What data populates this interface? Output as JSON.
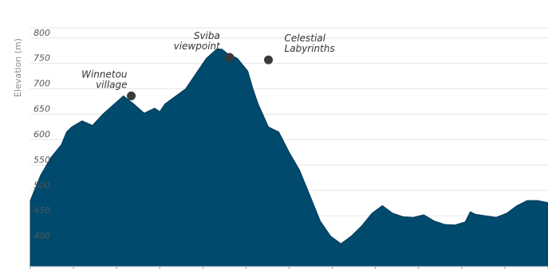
{
  "chart_data": {
    "type": "area",
    "title": "",
    "xlabel": "",
    "ylabel": "Elevation (m)",
    "ylim": [
      350,
      820
    ],
    "y_ticks": [
      400,
      450,
      500,
      550,
      600,
      650,
      700,
      750,
      800
    ],
    "grid": true,
    "colors": {
      "area": "#004a6d",
      "area_stroke": "#003a58",
      "marker": "#3a3a3a"
    },
    "x": [
      0,
      2,
      4,
      6,
      7,
      8,
      10,
      12,
      14,
      16,
      18,
      20,
      22,
      24,
      25,
      26,
      28,
      30,
      31,
      32,
      34,
      36,
      37,
      38,
      40,
      42,
      43,
      44,
      46,
      48,
      50,
      52,
      54,
      56,
      58,
      60,
      62,
      64,
      66,
      68,
      70,
      72,
      74,
      76,
      78,
      80,
      82,
      84,
      85,
      86,
      88,
      90,
      92,
      94,
      96,
      98,
      100
    ],
    "series": [
      {
        "values": [
          480,
          530,
          565,
          590,
          615,
          625,
          637,
          628,
          650,
          668,
          686,
          670,
          652,
          662,
          655,
          670,
          685,
          700,
          715,
          730,
          760,
          778,
          778,
          770,
          760,
          735,
          700,
          670,
          625,
          615,
          575,
          540,
          490,
          440,
          410,
          395,
          410,
          430,
          455,
          470,
          455,
          448,
          447,
          452,
          440,
          433,
          432,
          438,
          458,
          453,
          450,
          447,
          455,
          470,
          480,
          480,
          476
        ]
      }
    ],
    "annotations": [
      {
        "label_lines": [
          "Winnetou",
          "village"
        ],
        "x": 19.5,
        "y": 686
      },
      {
        "label_lines": [
          "Sviba",
          "viewpoint"
        ],
        "x": 38.5,
        "y": 762
      },
      {
        "label_lines": [
          "Celestial",
          "Labyrinths"
        ],
        "x": 46,
        "y": 757
      }
    ],
    "x_tick_count": 13
  }
}
